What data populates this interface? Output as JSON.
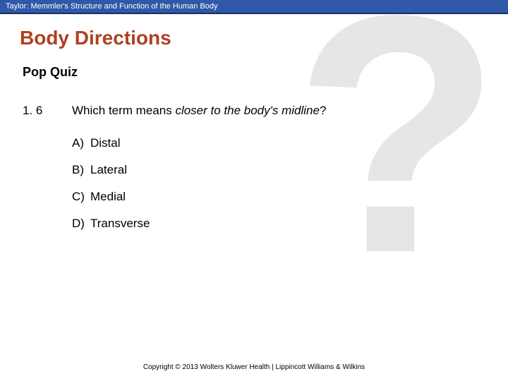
{
  "header": {
    "text": "Taylor: Memmler's Structure and Function of the Human Body"
  },
  "title": "Body Directions",
  "subtitle": "Pop Quiz",
  "bg_glyph": "?",
  "question": {
    "number": "1. 6",
    "prefix": "Which term means ",
    "italic": "closer to the body's midline",
    "suffix": "?"
  },
  "options": [
    {
      "letter": "A)",
      "text": "Distal"
    },
    {
      "letter": "B)",
      "text": "Lateral"
    },
    {
      "letter": "C)",
      "text": "Medial"
    },
    {
      "letter": "D)",
      "text": "Transverse"
    }
  ],
  "footer": "Copyright © 2013 Wolters Kluwer Health | Lippincott Williams & Wilkins",
  "colors": {
    "header_bg": "#3058a8",
    "header_border": "#1a2f5a",
    "title": "#b04020",
    "bg_glyph": "#e6e6e6",
    "text": "#000000",
    "page_bg": "#ffffff"
  }
}
